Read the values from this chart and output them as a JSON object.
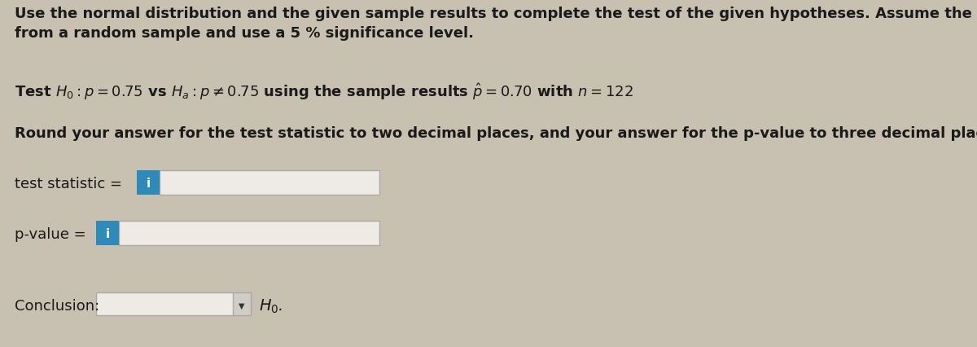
{
  "background_color": "#c8c0b0",
  "title_line1": "Use the normal distribution and the given sample results to complete the test of the given hypotheses. Assume the results come",
  "title_line2": "from a random sample and use a 5 % significance level.",
  "hypothesis_line": "Test $H_0 : p = 0.75$ vs $H_a : p \\neq 0.75$ using the sample results $\\hat{p} = 0.70$ with $n = 122$",
  "round_line": "Round your answer for the test statistic to two decimal places, and your answer for the p-value to three decimal places.",
  "label_test_stat": "test statistic =",
  "label_pvalue": "p-value =",
  "label_conclusion": "Conclusion:",
  "h0_label": "$H_0$.",
  "input_box_color": "#eeeae4",
  "input_box_border": "#aaaaaa",
  "blue_button_color": "#2e8ab8",
  "text_color": "#1a1a1a",
  "font_size_body": 13,
  "font_size_labels": 13
}
